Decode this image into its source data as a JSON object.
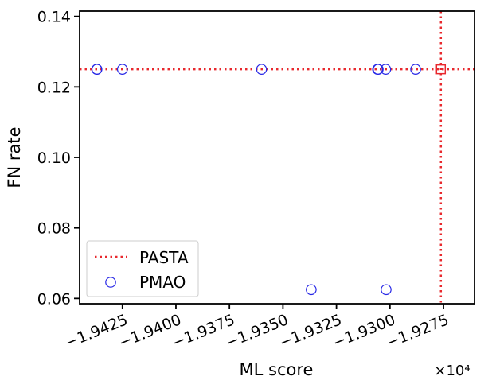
{
  "chart_data": {
    "type": "scatter",
    "title": "",
    "xlabel": "ML score",
    "ylabel": "FN rate",
    "x_offset_label": "×10⁴",
    "xlim": [
      -19.445,
      -19.2605
    ],
    "ylim": [
      0.0585,
      0.1415
    ],
    "x_ticks": [
      -19.425,
      -19.4,
      -19.375,
      -19.35,
      -19.325,
      -19.3,
      -19.275
    ],
    "x_tick_labels": [
      "−1.9425",
      "−1.9400",
      "−1.9375",
      "−1.9350",
      "−1.9325",
      "−1.9300",
      "−1.9275"
    ],
    "y_ticks": [
      0.06,
      0.08,
      0.1,
      0.12,
      0.14
    ],
    "y_tick_labels": [
      "0.06",
      "0.08",
      "0.10",
      "0.12",
      "0.14"
    ],
    "grid": false,
    "legend_position": "lower-left",
    "pasta": {
      "name": "PASTA",
      "color": "#e8282d",
      "point": {
        "x": -19.2762,
        "y": 0.125
      }
    },
    "series": [
      {
        "name": "PMAO",
        "color": "#2727e6",
        "points": [
          {
            "x": -19.437,
            "y": 0.125
          },
          {
            "x": -19.4369,
            "y": 0.125
          },
          {
            "x": -19.425,
            "y": 0.125
          },
          {
            "x": -19.36,
            "y": 0.125
          },
          {
            "x": -19.3058,
            "y": 0.125
          },
          {
            "x": -19.3055,
            "y": 0.125
          },
          {
            "x": -19.302,
            "y": 0.125
          },
          {
            "x": -19.288,
            "y": 0.125
          },
          {
            "x": -19.3368,
            "y": 0.0625
          },
          {
            "x": -19.3018,
            "y": 0.0625
          }
        ]
      }
    ]
  }
}
